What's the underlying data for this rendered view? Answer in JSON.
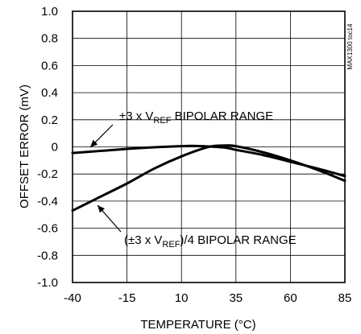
{
  "chart_data": {
    "type": "line",
    "title": "",
    "xlabel": "TEMPERATURE (°C)",
    "ylabel": "OFFSET ERROR (mV)",
    "xlim": [
      -40,
      85
    ],
    "ylim": [
      -1.0,
      1.0
    ],
    "x_ticks": [
      -40,
      -15,
      10,
      35,
      60,
      85
    ],
    "x_tick_labels": [
      "-40",
      "-15",
      "10",
      "35",
      "60",
      "85"
    ],
    "y_ticks": [
      1.0,
      0.8,
      0.6,
      0.4,
      0.2,
      0,
      -0.2,
      -0.4,
      -0.6,
      -0.8,
      -1.0
    ],
    "y_tick_labels": [
      "1.0",
      "0.8",
      "0.6",
      "0.4",
      "0.2",
      "0",
      "-0.2",
      "-0.4",
      "-0.6",
      "-0.8",
      "-1.0"
    ],
    "grid": true,
    "side_label": "MAX1300 toc14",
    "series": [
      {
        "name": "±3 x VREF BIPOLAR RANGE",
        "x": [
          -40,
          -27.5,
          -15,
          -2.5,
          10,
          16,
          22.5,
          30,
          35,
          47.5,
          60,
          72.5,
          85
        ],
        "y": [
          -0.045,
          -0.03,
          -0.015,
          -0.003,
          0.005,
          0.007,
          0.003,
          -0.005,
          -0.022,
          -0.06,
          -0.11,
          -0.16,
          -0.215
        ]
      },
      {
        "name": "(±3 x VREF)/4 BIPOLAR RANGE",
        "x": [
          -40,
          -27.5,
          -15,
          -2.5,
          10,
          22.5,
          30,
          35,
          47.5,
          60,
          72.5,
          85
        ],
        "y": [
          -0.47,
          -0.37,
          -0.27,
          -0.16,
          -0.07,
          0.0,
          0.01,
          0.005,
          -0.04,
          -0.1,
          -0.17,
          -0.25
        ]
      }
    ],
    "annotations": [
      {
        "prefix": "±3 x V",
        "subscript": "REF",
        "suffix": " BIPOLAR RANGE",
        "series_index": 0
      },
      {
        "prefix": "(±3 x V",
        "subscript": "REF",
        "suffix": ")/4 BIPOLAR RANGE",
        "series_index": 1
      }
    ]
  }
}
